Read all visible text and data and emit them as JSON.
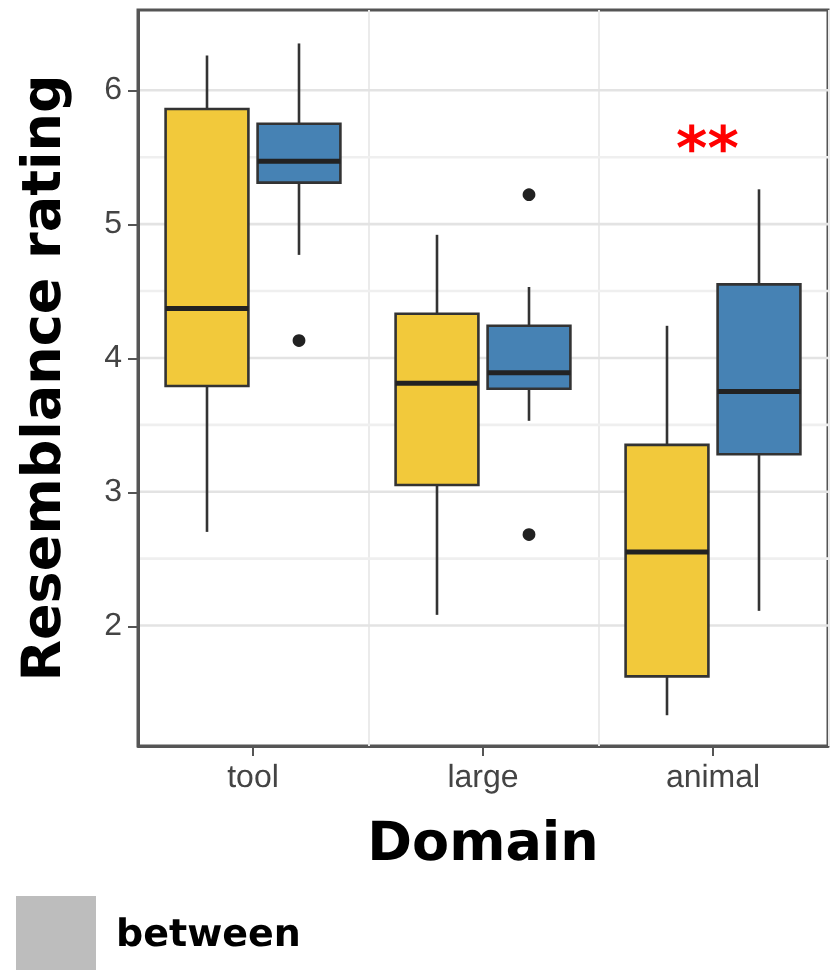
{
  "chart_data": {
    "type": "box",
    "xlabel": "Domain",
    "ylabel": "Resemblance rating",
    "categories": [
      "tool",
      "large",
      "animal"
    ],
    "series": [
      {
        "color": "#f2c93b",
        "boxes": [
          {
            "low": 2.7,
            "q1": 3.79,
            "median": 4.37,
            "q3": 5.86,
            "high": 6.26
          },
          {
            "low": 2.08,
            "q1": 3.05,
            "median": 3.81,
            "q3": 4.33,
            "high": 4.92
          },
          {
            "low": 1.33,
            "q1": 1.62,
            "median": 2.55,
            "q3": 3.35,
            "high": 4.24
          }
        ]
      },
      {
        "color": "#4682b4",
        "boxes": [
          {
            "low": 4.77,
            "q1": 5.31,
            "median": 5.47,
            "q3": 5.75,
            "high": 6.35,
            "outliers": [
              4.13
            ]
          },
          {
            "low": 3.53,
            "q1": 3.77,
            "median": 3.89,
            "q3": 4.24,
            "high": 4.53,
            "outliers": [
              5.22,
              2.68
            ]
          },
          {
            "low": 2.11,
            "q1": 3.28,
            "median": 3.75,
            "q3": 4.55,
            "high": 5.26
          }
        ]
      }
    ],
    "ylim": [
      1.1,
      6.6
    ],
    "yticks": [
      2,
      3,
      4,
      5,
      6
    ],
    "grid": true,
    "annotations": [
      "**",
      "between"
    ]
  }
}
